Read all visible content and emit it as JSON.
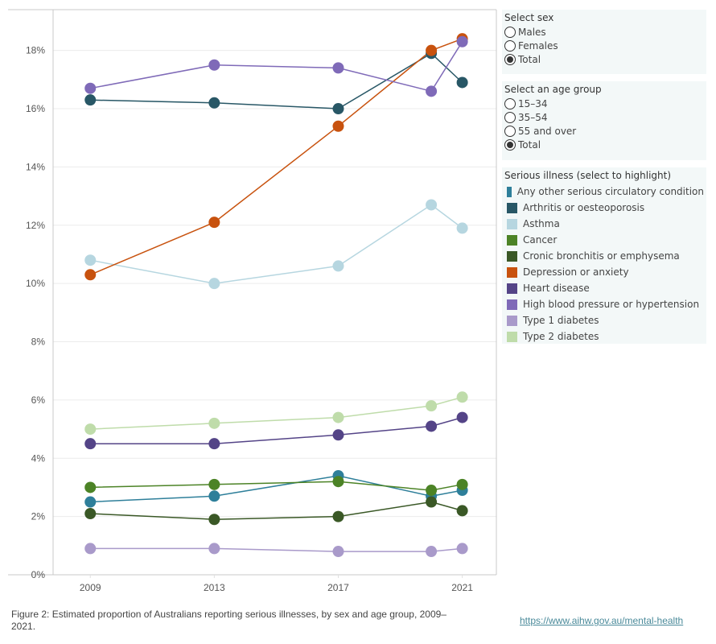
{
  "chart_data": {
    "type": "line",
    "title": "",
    "xlabel": "",
    "ylabel": "",
    "x": [
      2009,
      2013,
      2017,
      2020,
      2021
    ],
    "x_ticks": [
      "2009",
      "2013",
      "2017",
      "2021"
    ],
    "x_tick_values": [
      2009,
      2013,
      2017,
      2021
    ],
    "xlim": [
      2007.8,
      2022.1
    ],
    "ylim": [
      0,
      19.4
    ],
    "y_ticks": [
      0,
      2,
      4,
      6,
      8,
      10,
      12,
      14,
      16,
      18
    ],
    "y_tick_labels": [
      "0%",
      "2%",
      "4%",
      "6%",
      "8%",
      "10%",
      "12%",
      "14%",
      "16%",
      "18%"
    ],
    "grid": true,
    "legend_position": "right",
    "series": [
      {
        "name": "Any other serious circulatory condition",
        "color": "#2e7f9a",
        "values": [
          2.5,
          2.7,
          3.4,
          2.7,
          2.9
        ]
      },
      {
        "name": "Arthritis or oesteoporosis",
        "color": "#285766",
        "values": [
          16.3,
          16.2,
          16.0,
          17.9,
          16.9
        ]
      },
      {
        "name": "Asthma",
        "color": "#b6d6e0",
        "values": [
          10.8,
          10.0,
          10.6,
          12.7,
          11.9
        ]
      },
      {
        "name": "Cancer",
        "color": "#4c8326",
        "values": [
          3.0,
          3.1,
          3.2,
          2.9,
          3.1
        ]
      },
      {
        "name": "Cronic bronchitis or emphysema",
        "color": "#3a5826",
        "values": [
          2.1,
          1.9,
          2.0,
          2.5,
          2.2
        ]
      },
      {
        "name": "Depression or anxiety",
        "color": "#c8520e",
        "values": [
          10.3,
          12.1,
          15.4,
          18.0,
          18.4
        ]
      },
      {
        "name": "Heart disease",
        "color": "#544487",
        "values": [
          4.5,
          4.5,
          4.8,
          5.1,
          5.4
        ]
      },
      {
        "name": "High blood pressure or hypertension",
        "color": "#7f6ab8",
        "values": [
          16.7,
          17.5,
          17.4,
          16.6,
          18.3
        ]
      },
      {
        "name": "Type 1 diabetes",
        "color": "#a99aca",
        "values": [
          0.9,
          0.9,
          0.8,
          0.8,
          0.9
        ]
      },
      {
        "name": "Type 2 diabetes",
        "color": "#bfdcaa",
        "values": [
          5.0,
          5.2,
          5.4,
          5.8,
          6.1
        ]
      }
    ]
  },
  "filters": {
    "sex": {
      "title": "Select sex",
      "options": [
        {
          "label": "Males",
          "selected": false
        },
        {
          "label": "Females",
          "selected": false
        },
        {
          "label": "Total",
          "selected": true
        }
      ]
    },
    "age": {
      "title": "Select an age group",
      "options": [
        {
          "label": "15–34",
          "selected": false
        },
        {
          "label": "35–54",
          "selected": false
        },
        {
          "label": "55 and over",
          "selected": false
        },
        {
          "label": "Total",
          "selected": true
        }
      ]
    }
  },
  "legend": {
    "title": "Serious illness (select to highlight)"
  },
  "caption": "Figure 2: Estimated proportion of Australians reporting serious illnesses, by sex and age group, 2009–2021.",
  "source_link": "https://www.aihw.gov.au/mental-health"
}
